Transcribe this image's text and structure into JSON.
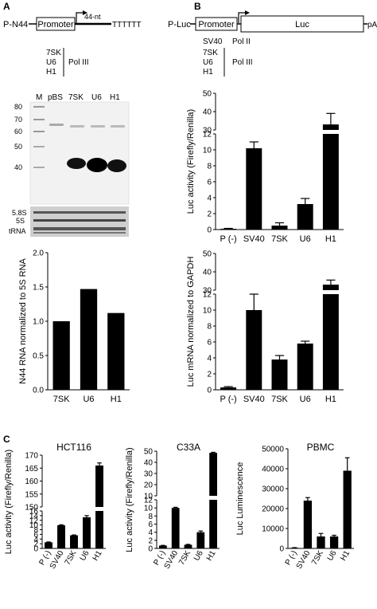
{
  "panels": {
    "A": {
      "letter": "A",
      "construct": {
        "name": "P-N44",
        "promoter": "Promoter",
        "insert": "44-nt",
        "terminator": "TTTTTT"
      },
      "promoters": [
        "7SK",
        "U6",
        "H1"
      ],
      "pol": "Pol III",
      "gel": {
        "lanes": [
          "M",
          "pBS",
          "7SK",
          "U6",
          "H1"
        ],
        "markers": [
          "80",
          "70",
          "60",
          "50",
          "40"
        ],
        "rrna_labels": [
          "5.8S",
          "5S",
          "tRNA"
        ]
      }
    },
    "B": {
      "letter": "B",
      "construct": {
        "name": "P-Luc",
        "promoter": "Promoter",
        "gene": "Luc",
        "polya": "pA"
      },
      "promoter_groups": [
        {
          "names": [
            "SV40"
          ],
          "pol": "Pol II"
        },
        {
          "names": [
            "7SK",
            "U6",
            "H1"
          ],
          "pol": "Pol III"
        }
      ]
    },
    "C": {
      "letter": "C"
    }
  },
  "chart_data": [
    {
      "id": "a-bar",
      "type": "bar",
      "categories": [
        "7SK",
        "U6",
        "H1"
      ],
      "values": [
        1.0,
        1.47,
        1.12
      ],
      "ylabel": "N44 RNA normalized to 5S RNA",
      "ylim": [
        0,
        2.0
      ],
      "yticks": [
        "0.0",
        "0.5",
        "1.0",
        "1.5",
        "2.0"
      ]
    },
    {
      "id": "b-luc",
      "type": "bar",
      "categories": [
        "P (-)",
        "SV40",
        "7SK",
        "U6",
        "H1"
      ],
      "values": [
        0.1,
        10.2,
        0.5,
        3.2,
        33
      ],
      "errors": [
        0.05,
        0.8,
        0.35,
        0.7,
        6
      ],
      "ylabel": "Luc activity (Firefly/Renilla)",
      "broken_axis": true,
      "lower_ylim": [
        0,
        12
      ],
      "lower_ticks": [
        "0",
        "2",
        "4",
        "6",
        "8",
        "10",
        "12"
      ],
      "upper_ylim": [
        30,
        50
      ],
      "upper_ticks": [
        "30",
        "40",
        "50"
      ]
    },
    {
      "id": "b-mrna",
      "type": "bar",
      "categories": [
        "P (-)",
        "SV40",
        "7SK",
        "U6",
        "H1"
      ],
      "values": [
        0.3,
        10.0,
        3.8,
        5.8,
        33
      ],
      "errors": [
        0.1,
        2.0,
        0.5,
        0.3,
        2.5
      ],
      "ylabel": "Luc mRNA normalized to GAPDH",
      "broken_axis": true,
      "lower_ylim": [
        0,
        12
      ],
      "lower_ticks": [
        "0",
        "2",
        "4",
        "6",
        "8",
        "10",
        "12"
      ],
      "upper_ylim": [
        30,
        50
      ],
      "upper_ticks": [
        "30",
        "40",
        "50"
      ]
    },
    {
      "id": "c-hct116",
      "type": "bar",
      "title": "HCT116",
      "categories": [
        "P (-)",
        "SV40",
        "7SK",
        "U6",
        "H1"
      ],
      "values": [
        2.6,
        9.9,
        5.6,
        13.3,
        166
      ],
      "errors": [
        0.15,
        0.2,
        0.15,
        0.7,
        1.0
      ],
      "ylabel": "Luc activity (Firefly/Renilla)",
      "broken_axis": true,
      "lower_ylim": [
        0,
        16
      ],
      "lower_ticks": [
        "0",
        "2",
        "4",
        "6",
        "8",
        "10",
        "12",
        "14",
        "16"
      ],
      "upper_ylim": [
        150,
        170
      ],
      "upper_ticks": [
        "150",
        "155",
        "160",
        "165",
        "170"
      ]
    },
    {
      "id": "c-c33a",
      "type": "bar",
      "title": "C33A",
      "categories": [
        "P (-)",
        "SV40",
        "7SK",
        "U6",
        "H1"
      ],
      "values": [
        0.7,
        10.0,
        0.9,
        4.0,
        48.5
      ],
      "errors": [
        0.05,
        0.15,
        0.1,
        0.3,
        0.5
      ],
      "ylabel": "Luc activity (Firefly/Renilla)",
      "broken_axis": true,
      "lower_ylim": [
        0,
        12
      ],
      "lower_ticks": [
        "0",
        "2",
        "4",
        "6",
        "8",
        "10",
        "12"
      ],
      "upper_ylim": [
        10,
        50
      ],
      "upper_ticks": [
        "10",
        "20",
        "30",
        "40",
        "50"
      ]
    },
    {
      "id": "c-pbmc",
      "type": "bar",
      "title": "PBMC",
      "categories": [
        "P (-)",
        "SV40",
        "7SK",
        "U6",
        "H1"
      ],
      "values": [
        300,
        24000,
        6000,
        6000,
        39000
      ],
      "errors": [
        100,
        1500,
        1500,
        600,
        6500
      ],
      "ylabel": "Luc Luminescence",
      "ylim": [
        0,
        50000
      ],
      "yticks": [
        "0",
        "10000",
        "20000",
        "30000",
        "40000",
        "50000"
      ]
    }
  ]
}
